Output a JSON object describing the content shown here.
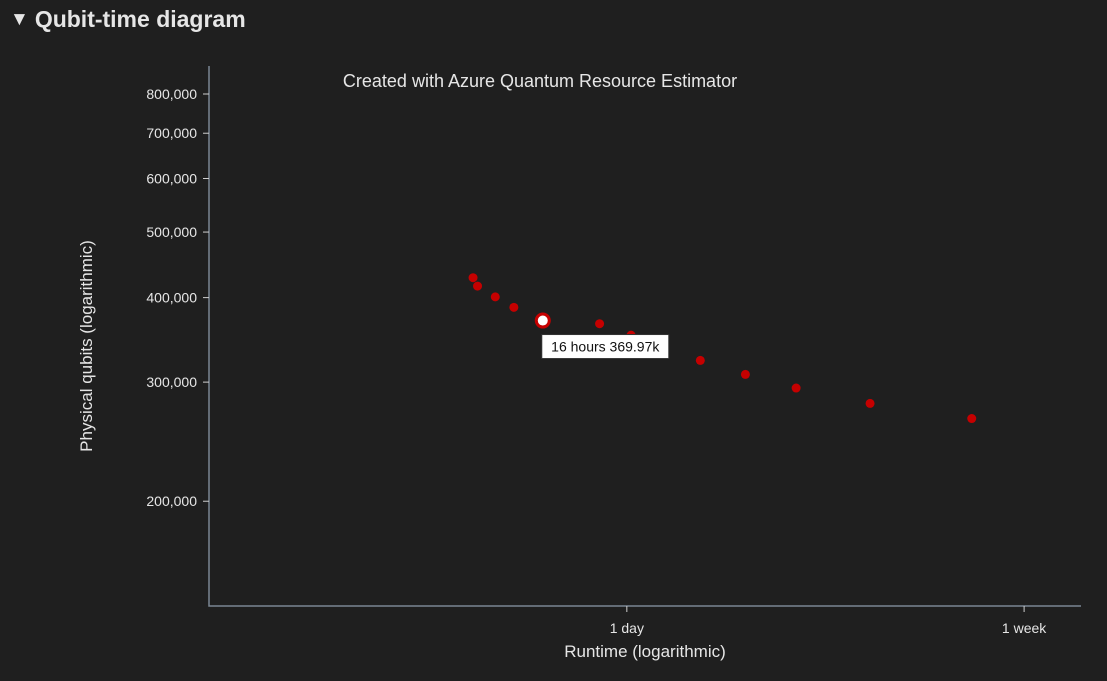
{
  "section": {
    "toggle_icon": "triangle-down-icon",
    "title": "Qubit-time diagram"
  },
  "chart_data": {
    "type": "scatter",
    "title": "Created with Azure Quantum Resource Estimator",
    "xlabel": "Runtime (logarithmic)",
    "ylabel": "Physical qubits (logarithmic)",
    "x_scale": "log",
    "y_scale": "log",
    "x_unit": "hours",
    "xlim": [
      3.1,
      222
    ],
    "ylim": [
      140000,
      880000
    ],
    "x_ticks": [
      {
        "value": 24,
        "label": "1 day"
      },
      {
        "value": 168,
        "label": "1 week"
      }
    ],
    "y_ticks": [
      {
        "value": 200000,
        "label": "200,000"
      },
      {
        "value": 300000,
        "label": "300,000"
      },
      {
        "value": 400000,
        "label": "400,000"
      },
      {
        "value": 500000,
        "label": "500,000"
      },
      {
        "value": 600000,
        "label": "600,000"
      },
      {
        "value": 700000,
        "label": "700,000"
      },
      {
        "value": 800000,
        "label": "800,000"
      }
    ],
    "grid": false,
    "point_color": "#c50000",
    "points": [
      {
        "x": 11.3,
        "y": 428000
      },
      {
        "x": 11.55,
        "y": 416000
      },
      {
        "x": 12.6,
        "y": 401000
      },
      {
        "x": 13.8,
        "y": 387000
      },
      {
        "x": 15.9,
        "y": 369970
      },
      {
        "x": 21.0,
        "y": 366000
      },
      {
        "x": 24.5,
        "y": 352000
      },
      {
        "x": 28.5,
        "y": 337000
      },
      {
        "x": 34.4,
        "y": 323000
      },
      {
        "x": 42.9,
        "y": 308000
      },
      {
        "x": 55.0,
        "y": 294000
      },
      {
        "x": 79.0,
        "y": 279000
      },
      {
        "x": 130.0,
        "y": 265000
      }
    ],
    "highlighted_point": {
      "x": 15.9,
      "y": 369970
    },
    "tooltip": "16 hours 369.97k"
  }
}
